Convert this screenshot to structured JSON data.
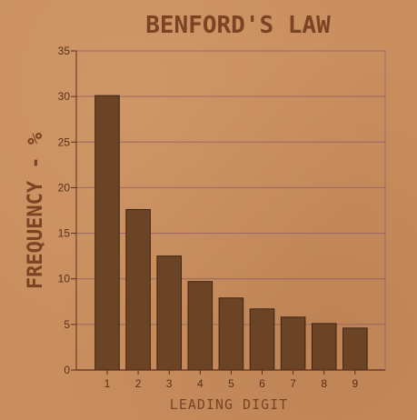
{
  "chart_data": {
    "type": "bar",
    "title": "BENFORD'S LAW",
    "xlabel": "LEADING DIGIT",
    "ylabel": "FREQUENCY - %",
    "categories": [
      "1",
      "2",
      "3",
      "4",
      "5",
      "6",
      "7",
      "8",
      "9"
    ],
    "values": [
      30.1,
      17.6,
      12.5,
      9.7,
      7.9,
      6.7,
      5.8,
      5.1,
      4.6
    ],
    "ylim": [
      0,
      35
    ],
    "yticks": [
      "0",
      "5",
      "10",
      "15",
      "20",
      "25",
      "30",
      "35"
    ],
    "grid": true,
    "colors": {
      "bar": "#6b4426",
      "bar_edge": "#3e2412",
      "grid": "#8c5a62",
      "axis": "#5a2f1a",
      "text": "#7a4424",
      "background": "#c98e5e"
    }
  }
}
